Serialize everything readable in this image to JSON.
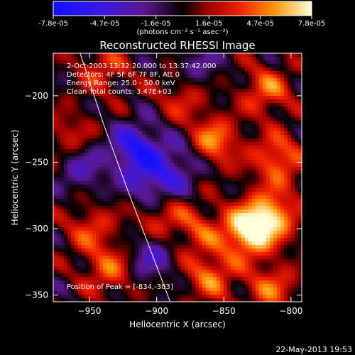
{
  "colorbar": {
    "tick_labels": [
      "-7.8e-05",
      "-4.7e-05",
      "-1.6e-05",
      "1.6e-05",
      "4.7e-05",
      "7.8e-05"
    ],
    "range": [
      -7.8e-05,
      7.8e-05
    ],
    "unit_label": "(photons cm⁻² s⁻¹ asec⁻²)"
  },
  "chart_data": {
    "type": "heatmap",
    "title": "Reconstructed RHESSI Image",
    "xlabel": "Heliocentric X (arcsec)",
    "ylabel": "Heliocentric Y (arcsec)",
    "xlim": [
      -977,
      -792
    ],
    "ylim": [
      -355,
      -168
    ],
    "xticks": [
      -950,
      -900,
      -850,
      -800
    ],
    "yticks": [
      -200,
      -250,
      -300,
      -350
    ],
    "info_lines": [
      "2-Oct-2003 13:32:20.000 to 13:37:42.000",
      "Detectors: 4F 5F 6F 7F 8F, Att 0",
      "Energy Range: 25.0 - 50.0 keV",
      "Clean    Total counts: 3.47E+03"
    ],
    "peak_label": "Position of Peak = [-834,-303]",
    "peak": [
      -834,
      -303
    ],
    "limb_curve": [
      [
        -957,
        -168
      ],
      [
        -940,
        -220
      ],
      [
        -922,
        -270
      ],
      [
        -905,
        -315
      ],
      [
        -890,
        -355
      ]
    ],
    "sources": [
      {
        "x": -832,
        "y": -302,
        "value": 7.8e-05
      },
      {
        "x": -814,
        "y": -290,
        "value": 5.8e-05
      },
      {
        "x": -858,
        "y": -235,
        "value": 5.2e-05
      },
      {
        "x": -810,
        "y": -248,
        "value": 4.8e-05
      },
      {
        "x": -818,
        "y": -196,
        "value": 4.2e-05
      },
      {
        "x": -860,
        "y": -335,
        "value": 4.4e-05
      },
      {
        "x": -815,
        "y": -345,
        "value": 4e-05
      },
      {
        "x": -935,
        "y": -330,
        "value": 4e-05
      },
      {
        "x": -950,
        "y": -300,
        "value": 3.2e-05
      },
      {
        "x": -940,
        "y": -180,
        "value": 3e-05
      },
      {
        "x": -880,
        "y": -200,
        "value": 3e-05
      },
      {
        "x": -900,
        "y": -290,
        "value": 3.5e-05
      },
      {
        "x": -870,
        "y": -300,
        "value": 3.2e-05
      },
      {
        "x": -965,
        "y": -230,
        "value": 2.5e-05
      },
      {
        "x": -915,
        "y": -240,
        "value": -6e-05
      },
      {
        "x": -903,
        "y": -268,
        "value": -4.5e-05
      },
      {
        "x": -955,
        "y": -255,
        "value": -3e-05
      },
      {
        "x": -880,
        "y": -250,
        "value": -3.2e-05
      },
      {
        "x": -905,
        "y": -320,
        "value": -3.5e-05
      },
      {
        "x": -870,
        "y": -180,
        "value": -2.5e-05
      }
    ]
  },
  "footer": {
    "timestamp": "22-May-2013 19:53"
  }
}
